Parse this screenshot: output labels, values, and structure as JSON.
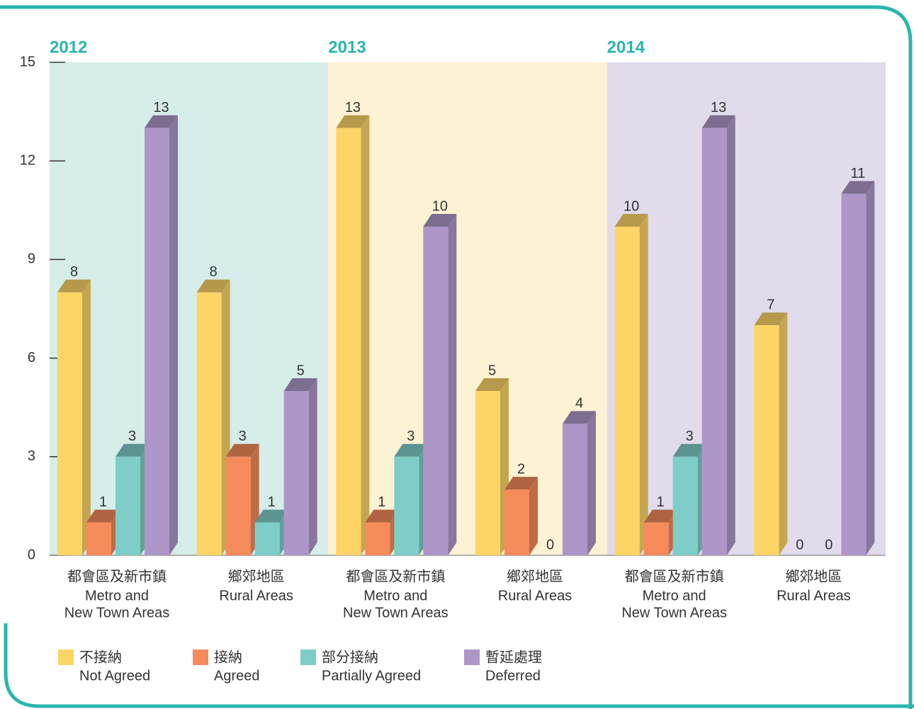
{
  "chart_data": {
    "type": "bar3d",
    "panels": [
      {
        "label": "2012",
        "color": "#d6ede9"
      },
      {
        "label": "2013",
        "color": "#fdf2d3"
      },
      {
        "label": "2014",
        "color": "#e1dbec"
      }
    ],
    "categories": [
      {
        "zh": "都會區及新市鎮",
        "en": [
          "Metro and",
          "New Town Areas"
        ]
      },
      {
        "zh": "鄉郊地區",
        "en": [
          "Rural Areas"
        ]
      },
      {
        "zh": "都會區及新市鎮",
        "en": [
          "Metro and",
          "New Town Areas"
        ]
      },
      {
        "zh": "鄉郊地區",
        "en": [
          "Rural Areas"
        ]
      },
      {
        "zh": "都會區及新市鎮",
        "en": [
          "Metro and",
          "New Town Areas"
        ]
      },
      {
        "zh": "鄉郊地區",
        "en": [
          "Rural Areas"
        ]
      }
    ],
    "series": [
      {
        "name": "不接納",
        "name_en": "Not Agreed",
        "color": "#fdd567",
        "values": [
          8,
          8,
          13,
          5,
          10,
          7
        ]
      },
      {
        "name": "接納",
        "name_en": "Agreed",
        "color": "#f58a5a",
        "values": [
          1,
          3,
          1,
          2,
          1,
          0
        ]
      },
      {
        "name": "部分接納",
        "name_en": "Partially Agreed",
        "color": "#7ecdc8",
        "values": [
          3,
          1,
          3,
          0,
          3,
          0
        ]
      },
      {
        "name": "暫延處理",
        "name_en": "Deferred",
        "color": "#ae97c8",
        "values": [
          13,
          5,
          10,
          4,
          13,
          11
        ]
      }
    ],
    "ylim": [
      0,
      15
    ],
    "yticks": [
      0,
      3,
      6,
      9,
      12,
      15
    ]
  }
}
